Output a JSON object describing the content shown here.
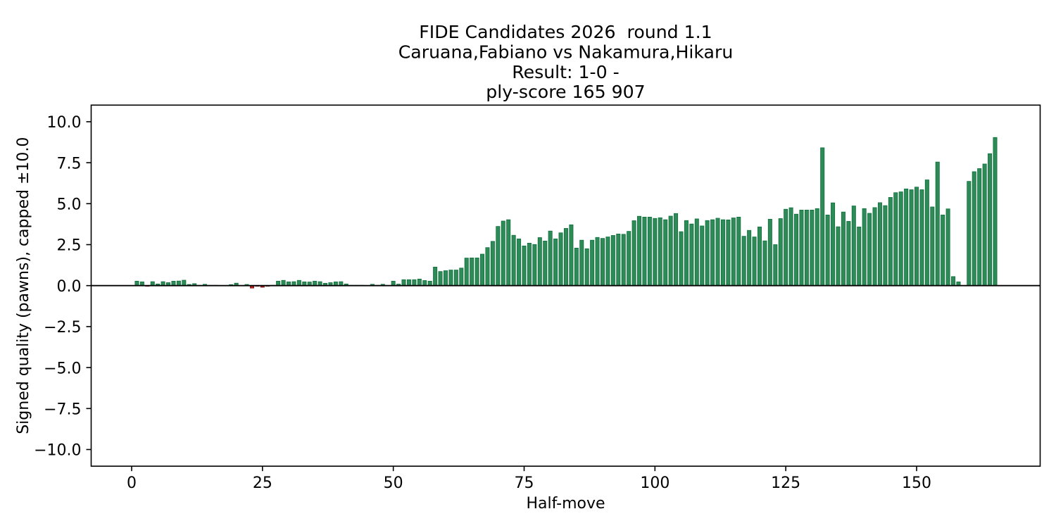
{
  "chart": {
    "title_lines": [
      "FIDE Candidates 2026  round 1.1",
      "Caruana,Fabiano vs Nakamura,Hikaru",
      "Result: 1-0 -",
      "ply-score 165 907"
    ],
    "xlabel": "Half-move",
    "ylabel": "Signed quality (pawns), capped ±10.0"
  },
  "chart_data": {
    "type": "bar",
    "title": "FIDE Candidates 2026  round 1.1\nCaruana,Fabiano vs Nakamura,Hikaru\nResult: 1-0 -\nply-score 165 907",
    "xlabel": "Half-move",
    "ylabel": "Signed quality (pawns), capped ±10.0",
    "x_first": 1,
    "x": "half-move index 1..165",
    "values": [
      0.27,
      0.23,
      -0.04,
      0.24,
      0.1,
      0.24,
      0.18,
      0.27,
      0.28,
      0.33,
      0.07,
      0.12,
      0.02,
      0.08,
      0.02,
      0.02,
      0.01,
      0.01,
      0.06,
      0.15,
      0.01,
      0.07,
      -0.15,
      -0.04,
      -0.1,
      -0.04,
      0.02,
      0.27,
      0.32,
      0.23,
      0.24,
      0.32,
      0.23,
      0.22,
      0.27,
      0.24,
      0.14,
      0.18,
      0.23,
      0.24,
      0.1,
      0.02,
      0.02,
      0.02,
      0.01,
      0.08,
      0.02,
      0.08,
      0.01,
      0.27,
      0.09,
      0.36,
      0.36,
      0.36,
      0.4,
      0.31,
      0.27,
      1.13,
      0.86,
      0.91,
      0.95,
      0.95,
      1.07,
      1.68,
      1.69,
      1.69,
      1.92,
      2.32,
      2.7,
      3.61,
      3.94,
      4.02,
      3.07,
      2.85,
      2.42,
      2.59,
      2.51,
      2.93,
      2.72,
      3.33,
      2.85,
      3.22,
      3.49,
      3.71,
      2.29,
      2.77,
      2.25,
      2.77,
      2.94,
      2.88,
      2.97,
      3.06,
      3.15,
      3.13,
      3.31,
      3.96,
      4.23,
      4.18,
      4.18,
      4.1,
      4.14,
      4.02,
      4.24,
      4.4,
      3.29,
      3.97,
      3.76,
      4.07,
      3.64,
      3.97,
      4.02,
      4.11,
      4.02,
      4.01,
      4.13,
      4.18,
      3.01,
      3.37,
      2.97,
      3.58,
      2.73,
      4.05,
      2.5,
      4.09,
      4.66,
      4.75,
      4.36,
      4.61,
      4.61,
      4.61,
      4.7,
      8.41,
      4.31,
      5.05,
      3.59,
      4.49,
      3.92,
      4.86,
      3.58,
      4.7,
      4.41,
      4.76,
      5.06,
      4.88,
      5.38,
      5.67,
      5.72,
      5.9,
      5.85,
      6.01,
      5.85,
      6.45,
      4.8,
      7.54,
      4.31,
      4.68,
      0.55,
      0.23,
      0.01,
      6.36,
      6.95,
      7.14,
      7.42,
      8.05,
      9.04
    ],
    "ylim": [
      -11,
      11
    ],
    "xlim": [
      -7.74,
      173.65
    ],
    "yticks": [
      10.0,
      7.5,
      5.0,
      2.5,
      0.0,
      -2.5,
      -5.0,
      -7.5,
      -10.0
    ],
    "ytick_labels": [
      "10.0",
      "7.5",
      "5.0",
      "2.5",
      "0.0",
      "−2.5",
      "−5.0",
      "−7.5",
      "−10.0"
    ],
    "xticks": [
      0,
      25,
      50,
      75,
      100,
      125,
      150
    ],
    "xtick_labels": [
      "0",
      "25",
      "50",
      "75",
      "100",
      "125",
      "150"
    ],
    "grid": false,
    "legend": "none",
    "zero_line": true,
    "colors": {
      "positive_fill": "#2e8b57",
      "positive_edge": "#0e6f3c",
      "negative_fill": "#b22222",
      "negative_edge": "#7f1010",
      "axis": "#000000",
      "background": "#ffffff"
    }
  }
}
